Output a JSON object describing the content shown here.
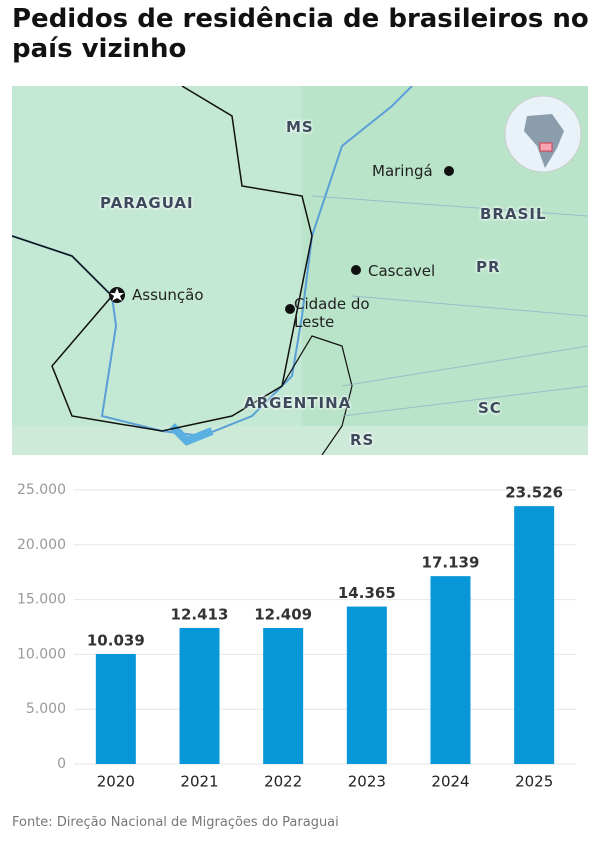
{
  "title": "Pedidos de residência de brasileiros no país vizinho",
  "map": {
    "labels": [
      "MS",
      "PARAGUAI",
      "Maringá",
      "BRASIL",
      "PR",
      "Cascavel",
      "Assunção",
      "Cidade do Leste",
      "ARGENTINA",
      "SC",
      "RS"
    ]
  },
  "chart_data": {
    "type": "bar",
    "categories": [
      "2020",
      "2021",
      "2022",
      "2023",
      "2024",
      "2025"
    ],
    "values": [
      10039,
      12413,
      12409,
      14365,
      17139,
      23526
    ],
    "value_labels": [
      "10.039",
      "12.413",
      "12.409",
      "14.365",
      "17.139",
      "23.526"
    ],
    "color": "#0797d8",
    "ylim": [
      0,
      25000
    ],
    "yticks": [
      0,
      {
        "value": 5000,
        "label": "5.000"
      },
      {
        "value": 10000,
        "label": "10.000"
      },
      {
        "value": 15000,
        "label": "15.000"
      },
      {
        "value": 20000,
        "label": "20.000"
      },
      {
        "value": 25000,
        "label": "25.000"
      }
    ],
    "grid": true
  },
  "source": "Fonte: Direção Nacional de Migrações do Paraguai"
}
